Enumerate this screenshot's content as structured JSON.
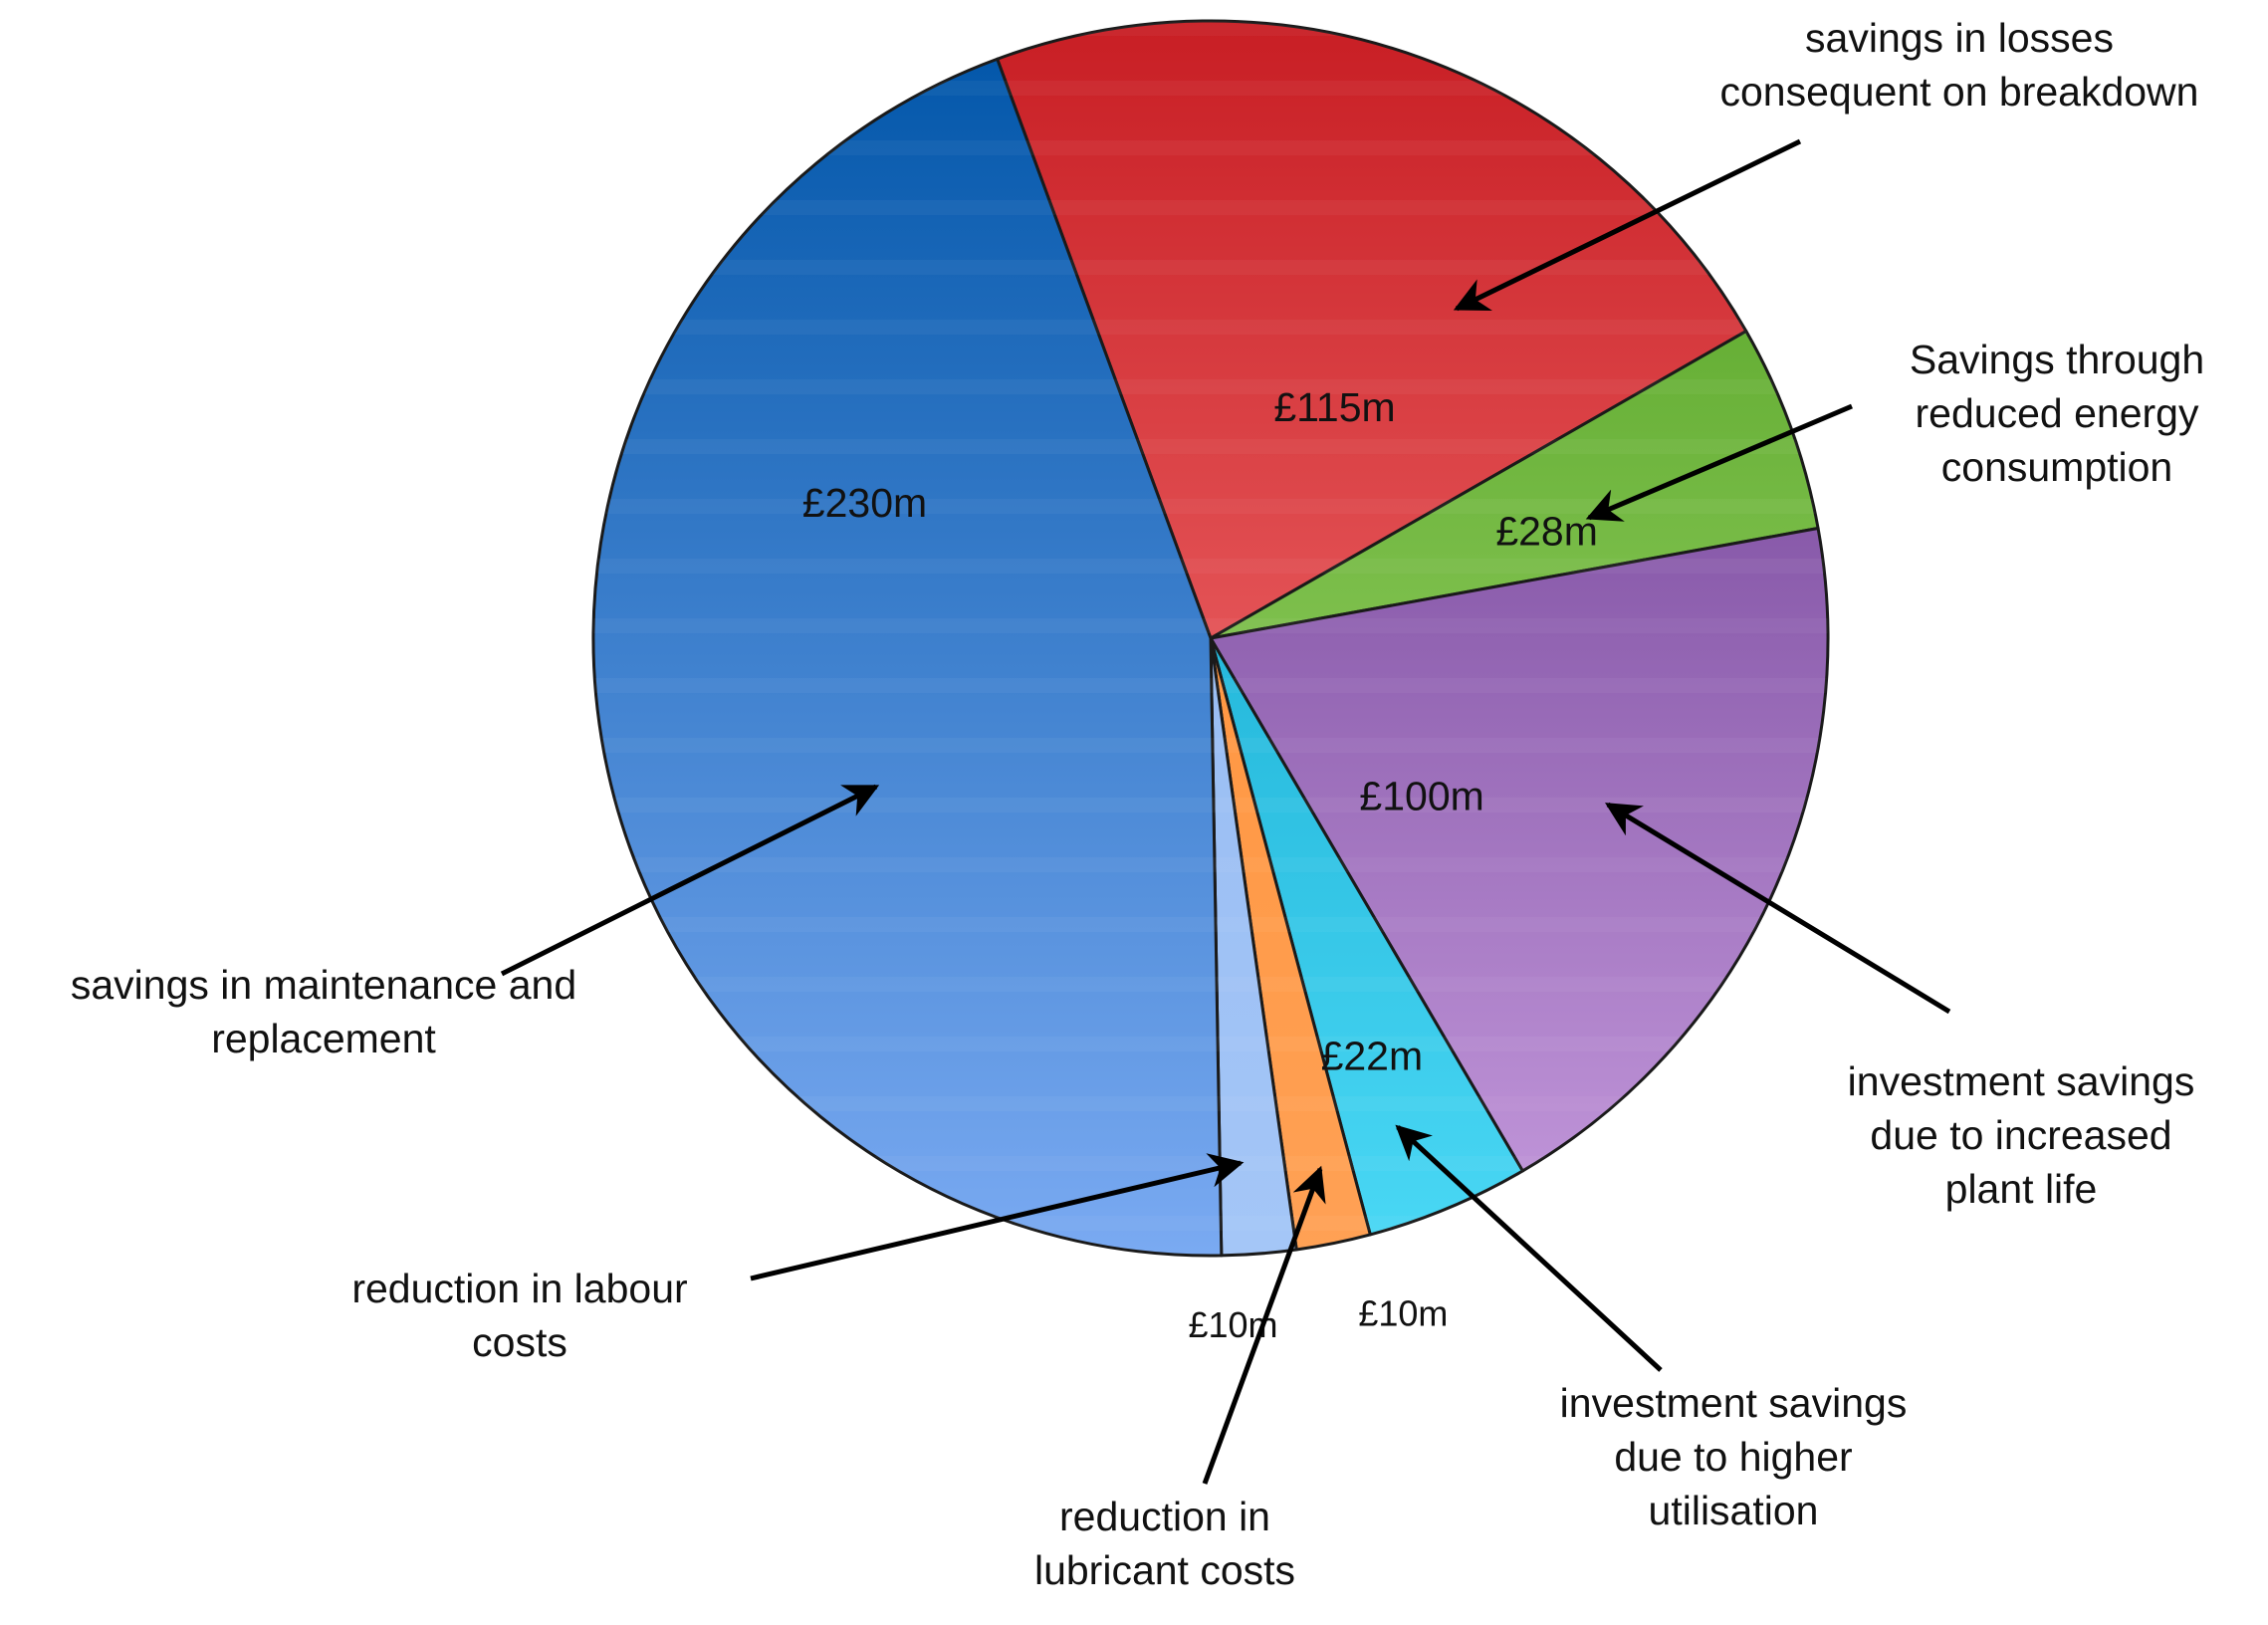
{
  "chart_data": {
    "type": "pie",
    "title": "",
    "unit": "£m",
    "slices": [
      {
        "label": "savings in losses consequent on breakdown",
        "value": 115,
        "value_label": "£115m",
        "color_top": "#c81e24",
        "color_bottom": "#ff8888"
      },
      {
        "label": "Savings through reduced energy consumption",
        "value": 28,
        "value_label": "£28m",
        "color_top": "#4e9e1e",
        "color_bottom": "#aee27c"
      },
      {
        "label": "investment savings due to increased plant life",
        "value": 100,
        "value_label": "£100m",
        "color_top": "#5e2d86",
        "color_bottom": "#c59add"
      },
      {
        "label": "investment savings due to higher utilisation",
        "value": 22,
        "value_label": "£22m",
        "color_top": "#0099c2",
        "color_bottom": "#4ad8f5"
      },
      {
        "label": "reduction in lubricant costs",
        "value": 10,
        "value_label": "£10m",
        "color_top": "#ff8d30",
        "color_bottom": "#ffa155"
      },
      {
        "label": "reduction in labour costs",
        "value": 10,
        "value_label": "£10m",
        "color_top": "#8fb5ef",
        "color_bottom": "#a4c6f7"
      },
      {
        "label": "savings in maintenance and replacement",
        "value": 230,
        "value_label": "£230m",
        "color_top": "#0055a8",
        "color_bottom": "#7aaaf2"
      }
    ],
    "annotations": [
      {
        "lines": [
          "savings in losses",
          "consequent on breakdown"
        ]
      },
      {
        "lines": [
          "Savings through",
          "reduced energy",
          "consumption"
        ]
      },
      {
        "lines": [
          "investment savings",
          "due to increased",
          "plant life"
        ]
      },
      {
        "lines": [
          "investment savings",
          "due to higher",
          "utilisation"
        ]
      },
      {
        "lines": [
          "reduction in",
          "lubricant costs"
        ]
      },
      {
        "lines": [
          "reduction in labour",
          "costs"
        ]
      },
      {
        "lines": [
          "savings in maintenance and",
          "replacement"
        ]
      }
    ]
  }
}
